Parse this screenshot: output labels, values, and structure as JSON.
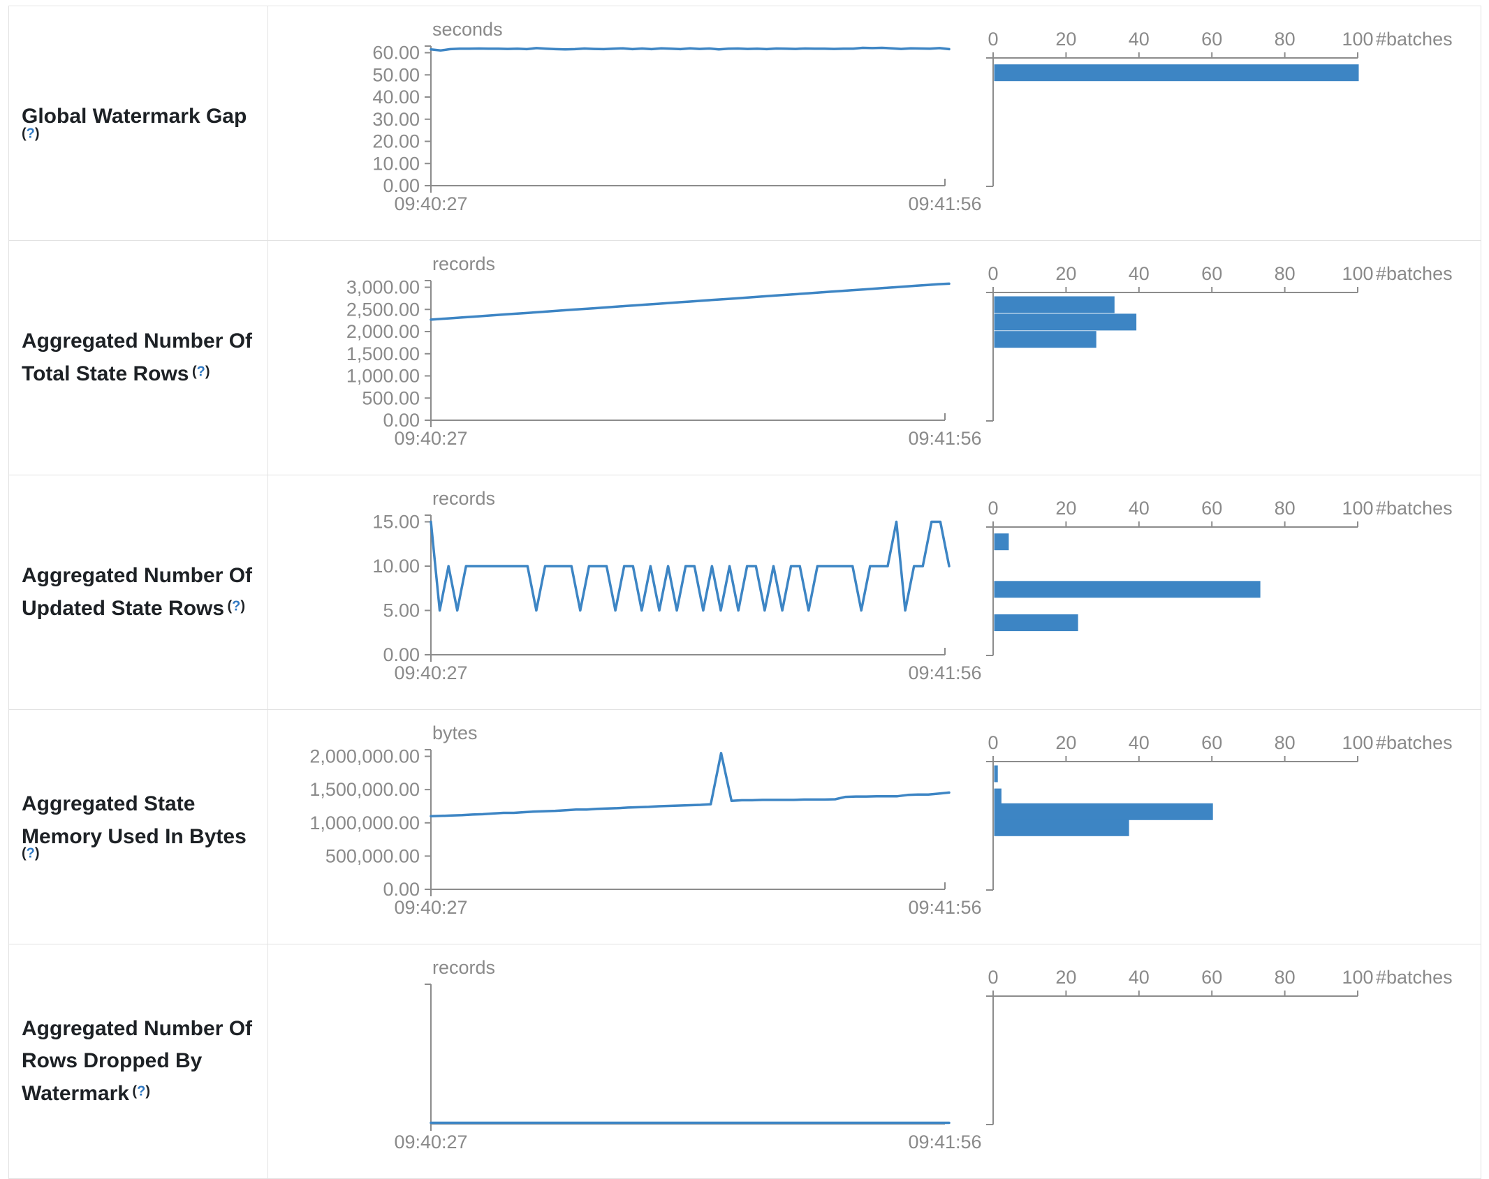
{
  "page": {
    "background": "#ffffff",
    "border_color": "#e2e2e2",
    "chart_color": "#3d85c4",
    "axis_text_color": "#8a8a8a",
    "label_text_color": "#1d2125",
    "help_link_color": "#2f78c2"
  },
  "help": {
    "prefix": "(",
    "symbol": "?",
    "suffix": ")"
  },
  "rows": [
    {
      "label": "Global Watermark Gap"
    },
    {
      "label": "Aggregated Number Of Total State Rows"
    },
    {
      "label": "Aggregated Number Of Updated State Rows"
    },
    {
      "label": "Aggregated State Memory Used In Bytes"
    },
    {
      "label": "Aggregated Number Of Rows Dropped By Watermark"
    }
  ],
  "chart_data": [
    {
      "row": "Global Watermark Gap",
      "timeline": {
        "type": "line",
        "unit": "seconds",
        "x_start": "09:40:27",
        "x_end": "09:41:56",
        "ylim": [
          0,
          63
        ],
        "y_ticks": [
          0,
          10,
          20,
          30,
          40,
          50,
          60
        ],
        "values": [
          61.5,
          61.0,
          61.6,
          61.8,
          61.8,
          61.9,
          61.8,
          61.8,
          61.7,
          61.8,
          61.6,
          62.1,
          61.8,
          61.6,
          61.5,
          61.6,
          61.9,
          61.7,
          61.6,
          61.8,
          62.0,
          61.6,
          61.9,
          61.6,
          62.0,
          61.8,
          61.6,
          62.0,
          61.7,
          61.9,
          61.5,
          61.8,
          61.9,
          61.7,
          61.8,
          61.6,
          61.9,
          61.8,
          61.7,
          61.9,
          61.8,
          61.8,
          61.7,
          61.8,
          61.8,
          62.2,
          62.1,
          62.2,
          62.0,
          61.7,
          62.0,
          61.9,
          61.8,
          62.1,
          61.6
        ]
      },
      "histogram": {
        "type": "bar",
        "orientation": "horizontal",
        "xlabel": "#batches",
        "x_ticks": [
          0,
          20,
          40,
          60,
          80,
          100
        ],
        "xlim": [
          0,
          100
        ],
        "bars": [
          {
            "value": 100,
            "y_frac": 0.05
          }
        ]
      }
    },
    {
      "row": "Aggregated Number Of Total State Rows",
      "timeline": {
        "type": "line",
        "unit": "records",
        "x_start": "09:40:27",
        "x_end": "09:41:56",
        "ylim": [
          0,
          3150
        ],
        "y_ticks": [
          0,
          500,
          1000,
          1500,
          2000,
          2500,
          3000
        ],
        "values": [
          2270,
          2287,
          2304,
          2321,
          2338,
          2355,
          2372,
          2389,
          2406,
          2423,
          2440,
          2457,
          2474,
          2491,
          2508,
          2525,
          2542,
          2559,
          2576,
          2593,
          2610,
          2627,
          2644,
          2661,
          2678,
          2695,
          2712,
          2729,
          2746,
          2763,
          2780,
          2797,
          2814,
          2831,
          2848,
          2865,
          2882,
          2899,
          2916,
          2933,
          2950,
          2967,
          2984,
          3001,
          3018,
          3035,
          3052,
          3069,
          3080
        ]
      },
      "histogram": {
        "type": "bar",
        "orientation": "horizontal",
        "xlabel": "#batches",
        "x_ticks": [
          0,
          20,
          40,
          60,
          80,
          100
        ],
        "xlim": [
          0,
          100
        ],
        "bars": [
          {
            "value": 33,
            "y_frac": 0.03
          },
          {
            "value": 39,
            "y_frac": 0.165
          },
          {
            "value": 28,
            "y_frac": 0.3
          }
        ]
      }
    },
    {
      "row": "Aggregated Number Of Updated State Rows",
      "timeline": {
        "type": "line",
        "unit": "records",
        "x_start": "09:40:27",
        "x_end": "09:41:56",
        "ylim": [
          0,
          15.75
        ],
        "y_ticks": [
          0,
          5,
          10,
          15
        ],
        "values": [
          15,
          5,
          10,
          5,
          10,
          10,
          10,
          10,
          10,
          10,
          10,
          10,
          5,
          10,
          10,
          10,
          10,
          5,
          10,
          10,
          10,
          5,
          10,
          10,
          5,
          10,
          5,
          10,
          5,
          10,
          10,
          5,
          10,
          5,
          10,
          5,
          10,
          10,
          5,
          10,
          5,
          10,
          10,
          5,
          10,
          10,
          10,
          10,
          10,
          5,
          10,
          10,
          10,
          15,
          5,
          10,
          10,
          15,
          15,
          10
        ]
      },
      "histogram": {
        "type": "bar",
        "orientation": "horizontal",
        "xlabel": "#batches",
        "x_ticks": [
          0,
          20,
          40,
          60,
          80,
          100
        ],
        "xlim": [
          0,
          100
        ],
        "bars": [
          {
            "value": 4,
            "y_frac": 0.05
          },
          {
            "value": 73,
            "y_frac": 0.42
          },
          {
            "value": 23,
            "y_frac": 0.68
          }
        ]
      }
    },
    {
      "row": "Aggregated State Memory Used In Bytes",
      "timeline": {
        "type": "line",
        "unit": "bytes",
        "x_start": "09:40:27",
        "x_end": "09:41:56",
        "ylim": [
          0,
          2100000
        ],
        "y_ticks": [
          0,
          500000,
          1000000,
          1500000,
          2000000
        ],
        "values": [
          1100000,
          1105000,
          1110000,
          1115000,
          1125000,
          1130000,
          1140000,
          1150000,
          1150000,
          1160000,
          1170000,
          1175000,
          1180000,
          1190000,
          1200000,
          1200000,
          1210000,
          1215000,
          1220000,
          1230000,
          1235000,
          1240000,
          1250000,
          1255000,
          1260000,
          1265000,
          1270000,
          1280000,
          2050000,
          1330000,
          1340000,
          1340000,
          1345000,
          1345000,
          1345000,
          1345000,
          1350000,
          1350000,
          1350000,
          1355000,
          1390000,
          1395000,
          1395000,
          1400000,
          1400000,
          1400000,
          1420000,
          1425000,
          1425000,
          1440000,
          1455000
        ]
      },
      "histogram": {
        "type": "bar",
        "orientation": "horizontal",
        "xlabel": "#batches",
        "x_ticks": [
          0,
          20,
          40,
          60,
          80,
          100
        ],
        "xlim": [
          0,
          100
        ],
        "bars": [
          {
            "value": 1,
            "y_frac": 0.03
          },
          {
            "value": 2,
            "y_frac": 0.21
          },
          {
            "value": 60,
            "y_frac": 0.325
          },
          {
            "value": 37,
            "y_frac": 0.45
          }
        ]
      }
    },
    {
      "row": "Aggregated Number Of Rows Dropped By Watermark",
      "timeline": {
        "type": "line",
        "unit": "records",
        "x_start": "09:40:27",
        "x_end": "09:41:56",
        "ylim": [
          0,
          1
        ],
        "y_ticks": [],
        "values": [
          0,
          0,
          0,
          0,
          0,
          0,
          0,
          0,
          0,
          0,
          0,
          0,
          0,
          0,
          0,
          0,
          0,
          0,
          0,
          0,
          0,
          0,
          0,
          0,
          0,
          0,
          0,
          0,
          0,
          0,
          0,
          0,
          0,
          0,
          0,
          0,
          0,
          0,
          0,
          0,
          0,
          0,
          0,
          0,
          0
        ]
      },
      "histogram": {
        "type": "bar",
        "orientation": "horizontal",
        "xlabel": "#batches",
        "x_ticks": [
          0,
          20,
          40,
          60,
          80,
          100
        ],
        "xlim": [
          0,
          100
        ],
        "bars": []
      }
    }
  ]
}
